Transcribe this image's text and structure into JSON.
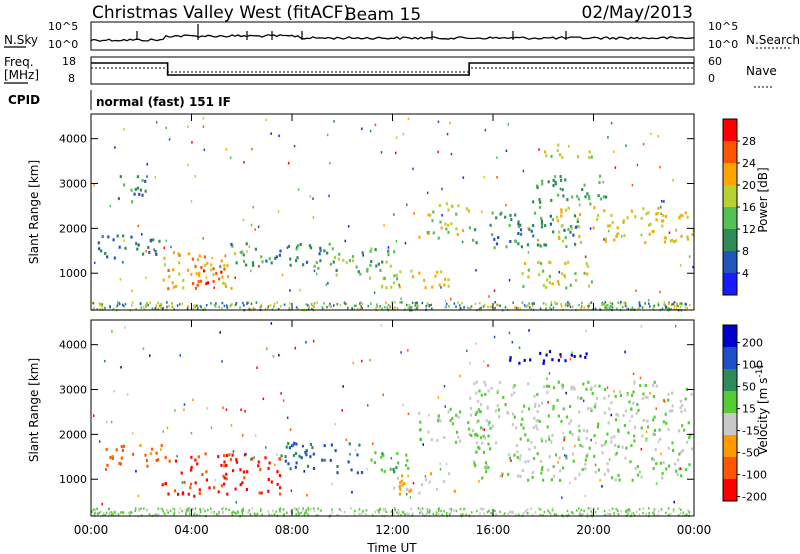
{
  "header": {
    "title": "Christmas Valley West (fitACF)",
    "beam": "Beam 15",
    "date": "02/May/2013"
  },
  "nsky_panel": {
    "left_label": "N.Sky",
    "left_ticks": [
      "10^5",
      "10^0"
    ],
    "right_label": "N.Search",
    "right_ticks": [
      "10^5",
      "10^0"
    ]
  },
  "freq_panel": {
    "left_label_1": "Freq.",
    "left_label_2": "[MHz]",
    "left_ticks": [
      "18",
      "8"
    ],
    "right_label": "Nave",
    "right_ticks": [
      "60",
      "0"
    ]
  },
  "cpid": {
    "label": "CPID",
    "value": "normal (fast) 151 IF"
  },
  "x_axis": {
    "label": "Time UT",
    "ticks": [
      "00:00",
      "04:00",
      "08:00",
      "12:00",
      "16:00",
      "20:00",
      "00:00"
    ]
  },
  "colors": {
    "power_scale": [
      "#1a1aff",
      "#2255bb",
      "#2e8b57",
      "#55c055",
      "#b8d030",
      "#ffa500",
      "#ff5500",
      "#ff0000"
    ],
    "velocity_scale": [
      "#ff0000",
      "#ff5500",
      "#ff9900",
      "#c8c8c8",
      "#55cc33",
      "#2e8b57",
      "#1f4fc8",
      "#0000cc"
    ]
  },
  "chart_data": [
    {
      "type": "heatmap",
      "title": "",
      "xlabel": "",
      "ylabel": "Slant Range [km]",
      "xlim": [
        0,
        24
      ],
      "ylim": [
        180,
        4550
      ],
      "yticks": [
        "4000",
        "3000",
        "2000",
        "1000"
      ],
      "colorbar": {
        "label": "Power [dB]",
        "ticks": [
          "28",
          "24",
          "20",
          "16",
          "12",
          "8",
          "4"
        ],
        "range": [
          0,
          32
        ]
      },
      "features": [
        {
          "t_start": 0.2,
          "t_end": 2.8,
          "range_start": 1350,
          "range_end": 1900,
          "level": 8
        },
        {
          "t_start": 1.0,
          "t_end": 2.4,
          "range_start": 2600,
          "range_end": 3200,
          "level": 9
        },
        {
          "t_start": 2.8,
          "t_end": 5.8,
          "range_start": 650,
          "range_end": 1500,
          "level": 22
        },
        {
          "t_start": 3.8,
          "t_end": 5.2,
          "range_start": 800,
          "range_end": 1300,
          "level": 26
        },
        {
          "t_start": 5.5,
          "t_end": 9.5,
          "range_start": 1100,
          "range_end": 1700,
          "level": 10
        },
        {
          "t_start": 9.5,
          "t_end": 12.5,
          "range_start": 900,
          "range_end": 1600,
          "level": 14
        },
        {
          "t_start": 11.5,
          "t_end": 14.5,
          "range_start": 700,
          "range_end": 1100,
          "level": 20
        },
        {
          "t_start": 13.0,
          "t_end": 15.0,
          "range_start": 1800,
          "range_end": 2600,
          "level": 18
        },
        {
          "t_start": 15.0,
          "t_end": 19.5,
          "range_start": 1600,
          "range_end": 2400,
          "level": 10
        },
        {
          "t_start": 17.0,
          "t_end": 20.0,
          "range_start": 700,
          "range_end": 1300,
          "level": 18
        },
        {
          "t_start": 18.5,
          "t_end": 24.0,
          "range_start": 1700,
          "range_end": 2500,
          "level": 20
        },
        {
          "t_start": 17.5,
          "t_end": 20.5,
          "range_start": 2500,
          "range_end": 3200,
          "level": 12
        },
        {
          "t_start": 18.0,
          "t_end": 20.0,
          "range_start": 3600,
          "range_end": 3900,
          "level": 18
        }
      ]
    },
    {
      "type": "heatmap",
      "title": "",
      "xlabel": "Time UT",
      "ylabel": "Slant Range [km]",
      "xlim": [
        0,
        24
      ],
      "ylim": [
        180,
        4550
      ],
      "yticks": [
        "4000",
        "3000",
        "2000",
        "1000"
      ],
      "colorbar": {
        "label": "Velocity [m s^-1]",
        "ticks": [
          "200",
          "100",
          "50",
          "15",
          "-15",
          "-50",
          "-100",
          "-200"
        ],
        "range": [
          -250,
          250
        ]
      },
      "features": [
        {
          "t_start": 0.5,
          "t_end": 3.0,
          "range_start": 1300,
          "range_end": 1800,
          "level": -150
        },
        {
          "t_start": 2.8,
          "t_end": 7.5,
          "range_start": 650,
          "range_end": 1600,
          "level": -200
        },
        {
          "t_start": 7.5,
          "t_end": 10.8,
          "range_start": 1150,
          "range_end": 1850,
          "level": 130
        },
        {
          "t_start": 10.8,
          "t_end": 12.8,
          "range_start": 1200,
          "range_end": 1700,
          "level": 50
        },
        {
          "t_start": 12.0,
          "t_end": 14.5,
          "range_start": 700,
          "range_end": 1200,
          "level": -60
        },
        {
          "t_start": 13.0,
          "t_end": 15.5,
          "range_start": 1800,
          "range_end": 2600,
          "level": 0
        },
        {
          "t_start": 15.0,
          "t_end": 24.0,
          "range_start": 1000,
          "range_end": 3200,
          "level": 0
        },
        {
          "t_start": 16.5,
          "t_end": 20.0,
          "range_start": 3600,
          "range_end": 3900,
          "level": 220
        }
      ]
    }
  ]
}
